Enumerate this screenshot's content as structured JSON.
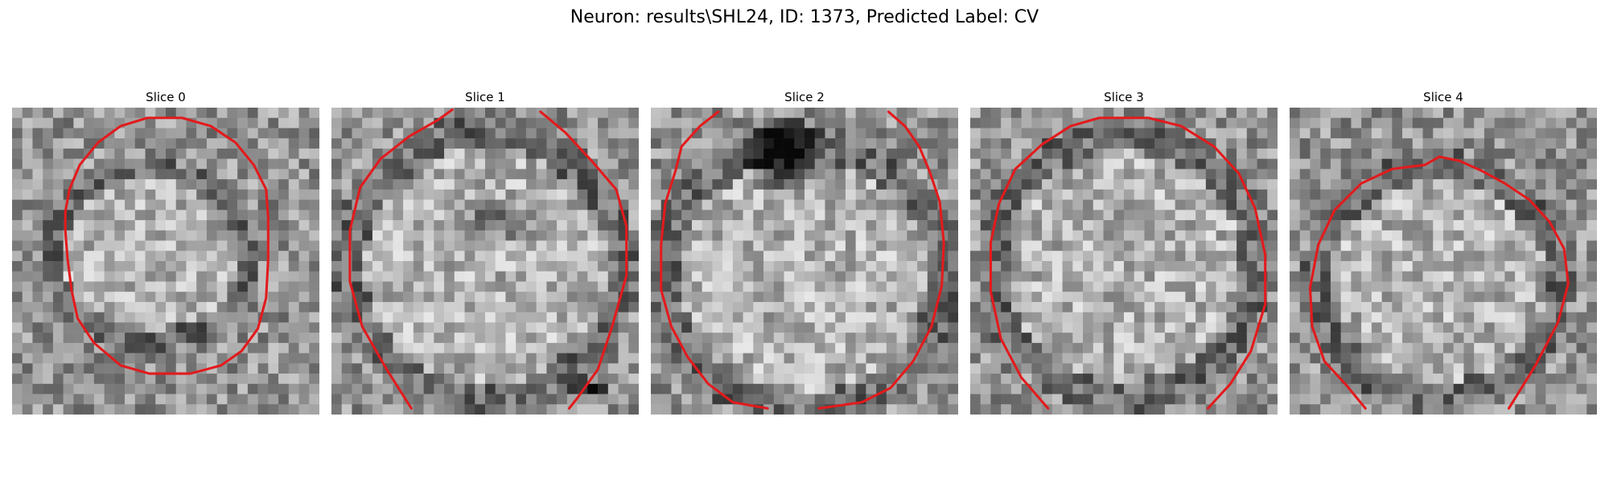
{
  "figure": {
    "title": "Neuron: results\\SHL24, ID: 1373, Predicted Label: CV"
  },
  "panels": [
    {
      "title": "Slice 0",
      "contour": "closed-ellipse"
    },
    {
      "title": "Slice 1",
      "contour": "open-bottom"
    },
    {
      "title": "Slice 2",
      "contour": "open-top-and-bottom"
    },
    {
      "title": "Slice 3",
      "contour": "open-bottom"
    },
    {
      "title": "Slice 4",
      "contour": "open-bottom"
    }
  ],
  "colors": {
    "contour": "#e31a1c",
    "background": "#ffffff"
  }
}
